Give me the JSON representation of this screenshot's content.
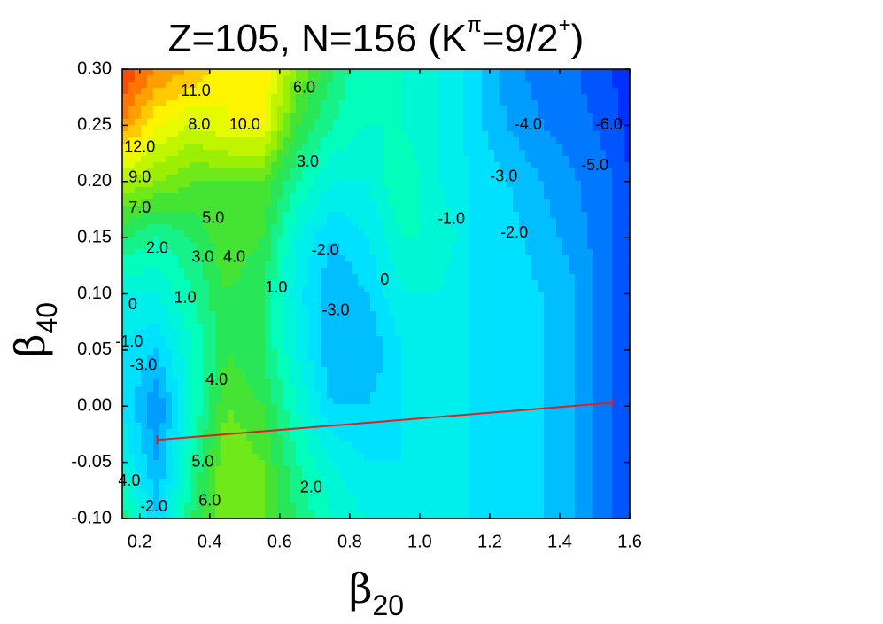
{
  "chart_data": {
    "type": "contour",
    "title": [
      "Z=105, N=156 (K",
      "π",
      "=9/2",
      "+",
      ")"
    ],
    "xlabel": {
      "text": "β",
      "sub": "20"
    },
    "ylabel": {
      "text": "β",
      "sub": "40"
    },
    "xlim": [
      0.15,
      1.6
    ],
    "ylim": [
      -0.1,
      0.3
    ],
    "xticks": [
      0.2,
      0.4,
      0.6,
      0.8,
      {
        "value": 1.0,
        "label": "1.0"
      },
      1.2,
      1.4,
      1.6
    ],
    "yticks": [
      {
        "value": -0.1,
        "label": "-0.10"
      },
      {
        "value": -0.05,
        "label": "-0.05"
      },
      {
        "value": 0,
        "label": "0.00"
      },
      {
        "value": 0.05,
        "label": "0.05"
      },
      {
        "value": 0.1,
        "label": "0.10"
      },
      {
        "value": 0.15,
        "label": "0.15"
      },
      {
        "value": 0.2,
        "label": "0.20"
      },
      {
        "value": 0.25,
        "label": "0.25"
      },
      {
        "value": 0.3,
        "label": "0.30"
      }
    ],
    "x": [
      0.15,
      0.25,
      0.35,
      0.45,
      0.55,
      0.65,
      0.75,
      0.85,
      0.95,
      1.05,
      1.15,
      1.25,
      1.35,
      1.45,
      1.55,
      1.6
    ],
    "y": [
      -0.1,
      -0.05,
      0,
      0.05,
      0.1,
      0.15,
      0.2,
      0.25,
      0.3
    ],
    "z": [
      [
        3,
        -2,
        3,
        6,
        5,
        3,
        1,
        0,
        -1,
        -1,
        -1,
        -1.5,
        -2,
        -3,
        -5,
        -6
      ],
      [
        0,
        -3,
        2,
        6,
        5,
        2,
        0,
        -1,
        -1,
        -1,
        -1,
        -1.5,
        -2,
        -3,
        -5,
        -6
      ],
      [
        -1,
        -4,
        1,
        5,
        4,
        1,
        -2,
        -2,
        -1,
        -1,
        -1,
        -1.5,
        -2,
        -3,
        -5,
        -6
      ],
      [
        -1,
        -2,
        1,
        4,
        3,
        0,
        -3,
        -3,
        -1,
        -1,
        -1,
        -1.5,
        -2,
        -3,
        -5,
        -6
      ],
      [
        0,
        0,
        2,
        4,
        3,
        -0.5,
        -3,
        -2,
        0,
        0,
        -1,
        -1.5,
        -2,
        -3,
        -5,
        -6
      ],
      [
        3,
        2,
        3,
        5,
        4,
        0,
        -2,
        -1,
        1,
        1,
        -1,
        -1.5,
        -2.5,
        -3.5,
        -5,
        -6
      ],
      [
        7,
        6,
        5,
        5,
        5,
        2,
        0,
        0,
        2,
        0,
        -1,
        -2,
        -3,
        -4,
        -5,
        -6
      ],
      [
        12,
        9,
        8,
        9,
        9,
        4,
        2,
        1,
        1,
        0,
        -1.5,
        -3,
        -4,
        -4.5,
        -5.5,
        -6.5
      ],
      [
        14,
        12,
        11,
        9,
        10,
        6,
        3,
        1,
        1,
        0,
        -1.5,
        -3.5,
        -4.5,
        -5,
        -6,
        -7
      ]
    ],
    "zlim": [
      -7,
      14
    ],
    "zstep": 1,
    "colormap": [
      "#0030ff",
      "#0090ff",
      "#00e8ff",
      "#00ffc0",
      "#30e040",
      "#a0f000",
      "#ffff00",
      "#ff9000",
      "#ff2000"
    ],
    "contour_labels": [
      {
        "value": 11,
        "label": "11.0",
        "x": 0.36,
        "y": 0.28
      },
      {
        "value": 6,
        "label": "6.0",
        "x": 0.67,
        "y": 0.283
      },
      {
        "value": 8,
        "label": "8.0",
        "x": 0.37,
        "y": 0.25
      },
      {
        "value": 10,
        "label": "10.0",
        "x": 0.5,
        "y": 0.25
      },
      {
        "value": 12,
        "label": "12.0",
        "x": 0.2,
        "y": 0.23
      },
      {
        "value": 3,
        "label": "3.0",
        "x": 0.68,
        "y": 0.217
      },
      {
        "value": 9,
        "label": "9.0",
        "x": 0.2,
        "y": 0.203
      },
      {
        "value": 7,
        "label": "7.0",
        "x": 0.2,
        "y": 0.176
      },
      {
        "value": 5,
        "label": "5.0",
        "x": 0.41,
        "y": 0.167
      },
      {
        "value": 2,
        "label": "2.0",
        "x": 0.25,
        "y": 0.14
      },
      {
        "value": 3,
        "label": "3.0",
        "x": 0.38,
        "y": 0.132
      },
      {
        "value": 4,
        "label": "4.0",
        "x": 0.47,
        "y": 0.132
      },
      {
        "value": -2,
        "label": "-2.0",
        "x": 0.73,
        "y": 0.138
      },
      {
        "value": 1,
        "label": "1.0",
        "x": 0.33,
        "y": 0.096
      },
      {
        "value": 1,
        "label": "1.0",
        "x": 0.59,
        "y": 0.105
      },
      {
        "value": 0,
        "label": "0",
        "x": 0.9,
        "y": 0.112
      },
      {
        "value": 0,
        "label": "0",
        "x": 0.18,
        "y": 0.09
      },
      {
        "value": -3,
        "label": "-3.0",
        "x": 0.76,
        "y": 0.085
      },
      {
        "value": -1,
        "label": "-1.0",
        "x": 0.17,
        "y": 0.057
      },
      {
        "value": -3,
        "label": "-3.0",
        "x": 0.21,
        "y": 0.036
      },
      {
        "value": 4,
        "label": "4.0",
        "x": 0.42,
        "y": 0.023
      },
      {
        "value": 5,
        "label": "5.0",
        "x": 0.38,
        "y": -0.05
      },
      {
        "value": 4,
        "label": "4.0",
        "x": 0.17,
        "y": -0.067
      },
      {
        "value": 2,
        "label": "2.0",
        "x": 0.69,
        "y": -0.073
      },
      {
        "value": -2,
        "label": "-2.0",
        "x": 0.24,
        "y": -0.09
      },
      {
        "value": 6,
        "label": "6.0",
        "x": 0.4,
        "y": -0.085
      },
      {
        "value": -4,
        "label": "-4.0",
        "x": 1.31,
        "y": 0.25
      },
      {
        "value": -6,
        "label": "-6.0",
        "x": 1.54,
        "y": 0.25
      },
      {
        "value": -5,
        "label": "-5.0",
        "x": 1.5,
        "y": 0.214
      },
      {
        "value": -3,
        "label": "-3.0",
        "x": 1.24,
        "y": 0.204
      },
      {
        "value": -1,
        "label": "-1.0",
        "x": 1.09,
        "y": 0.166
      },
      {
        "value": -2,
        "label": "-2.0",
        "x": 1.27,
        "y": 0.154
      }
    ],
    "path": {
      "x": [
        0.25,
        1.55
      ],
      "y": [
        -0.03,
        0.003
      ],
      "color": "#e02020"
    }
  }
}
